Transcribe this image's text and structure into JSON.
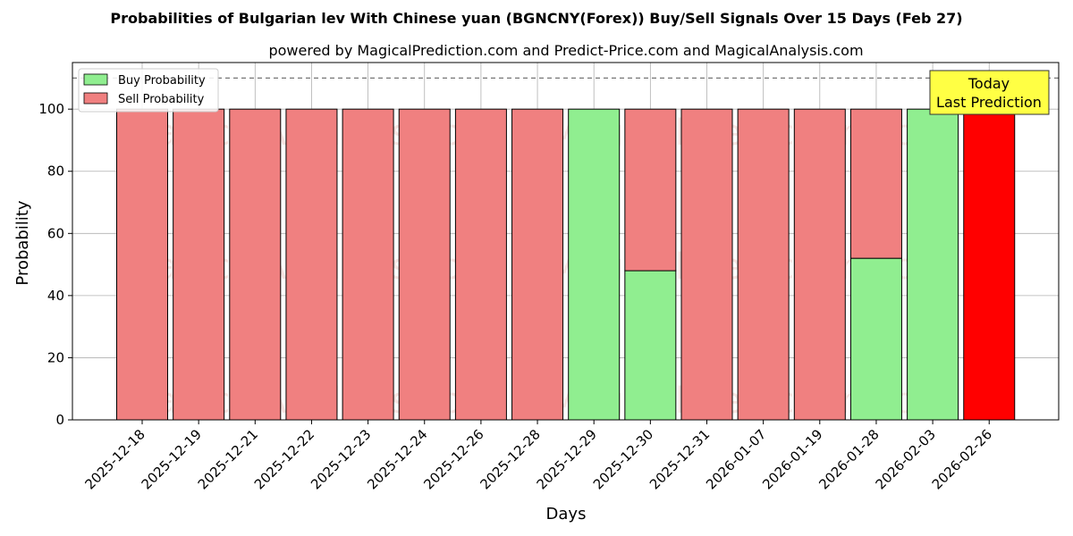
{
  "chart_data": {
    "type": "bar",
    "stacked": true,
    "title": "Probabilities of Bulgarian lev With Chinese yuan (BGNCNY(Forex)) Buy/Sell Signals Over 15 Days (Feb 27)",
    "subtitle": "powered by MagicalPrediction.com and Predict-Price.com and MagicalAnalysis.com",
    "xlabel": "Days",
    "ylabel": "Probability",
    "ylim": [
      0,
      115
    ],
    "yticks": [
      0,
      20,
      40,
      60,
      80,
      100
    ],
    "grid": true,
    "legend_position": "top-left",
    "reference_line": 110,
    "categories": [
      "2025-12-18",
      "2025-12-19",
      "2025-12-21",
      "2025-12-22",
      "2025-12-23",
      "2025-12-24",
      "2025-12-26",
      "2025-12-28",
      "2025-12-29",
      "2025-12-30",
      "2025-12-31",
      "2026-01-07",
      "2026-01-19",
      "2026-01-28",
      "2026-02-03",
      "2026-02-26"
    ],
    "series": [
      {
        "name": "Buy Probability",
        "color": "#90ee90",
        "values": [
          0,
          0,
          0,
          0,
          0,
          0,
          0,
          0,
          100,
          48,
          0,
          0,
          0,
          52,
          100,
          0
        ]
      },
      {
        "name": "Sell Probability",
        "color": "#f08080",
        "values": [
          100,
          100,
          100,
          100,
          100,
          100,
          100,
          100,
          0,
          52,
          100,
          100,
          100,
          48,
          0,
          100
        ]
      }
    ],
    "highlight": {
      "index": 15,
      "color": "#ff0000"
    },
    "annotation": {
      "lines": [
        "Today",
        "Last Prediction"
      ],
      "background": "#ffff44"
    },
    "watermarks": [
      "MagicalAnalysis.com",
      "MagicalPrediction.com"
    ]
  }
}
